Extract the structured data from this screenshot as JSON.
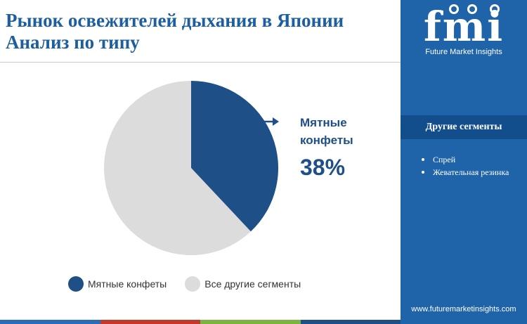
{
  "title": {
    "line1": "Рынок освежителей дыхания в Японии",
    "line2": "Анализ по типу"
  },
  "colors": {
    "primary": "#1e4f86",
    "other": "#dcdcdc",
    "panel": "#1f63a8",
    "panel_header": "#134e8c",
    "bottom_bar": [
      "#2a6db5",
      "#c0392b",
      "#7cb342",
      "#1e4f86"
    ]
  },
  "chart_data": {
    "type": "pie",
    "title": "Рынок освежителей дыхания в Японии Анализ по типу",
    "slices": [
      {
        "label": "Мятные конфеты",
        "value": 38,
        "color": "#1e4f86"
      },
      {
        "label": "Все другие сегменты",
        "value": 62,
        "color": "#dcdcdc"
      }
    ],
    "callout": {
      "label_line1": "Мятные",
      "label_line2": "конфеты",
      "value_text": "38%"
    },
    "legend": {
      "position": "bottom",
      "items": [
        {
          "label": "Мятные конфеты",
          "color": "#1e4f86"
        },
        {
          "label": "Все другие сегменты",
          "color": "#dcdcdc"
        }
      ]
    }
  },
  "side_panel": {
    "brand_mark": "fmi",
    "brand_name": "Future Market Insights",
    "other_segments_title": "Другие сегменты",
    "other_segments": [
      "Спрей",
      "Жевательная резинка"
    ],
    "website": "www.futuremarketinsights.com"
  }
}
